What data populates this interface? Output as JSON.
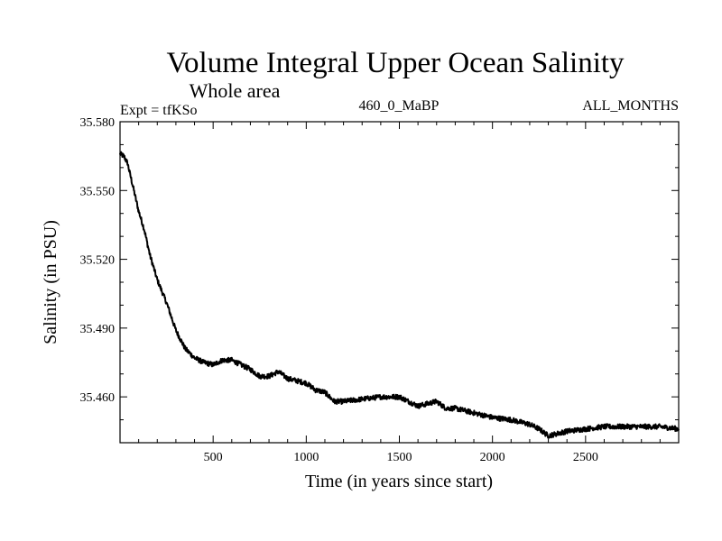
{
  "chart_data": {
    "type": "line",
    "title": "Volume Integral Upper Ocean Salinity",
    "subtitle": "Whole area",
    "expt_label": "Expt = tfKSo",
    "center_label": "460_0_MaBP",
    "right_label": "ALL_MONTHS",
    "xlabel": "Time (in years since start)",
    "ylabel": "Salinity (in PSU)",
    "xlim": [
      0,
      3000
    ],
    "ylim": [
      35.44,
      35.58
    ],
    "x_ticks": [
      500,
      1000,
      1500,
      2000,
      2500
    ],
    "x_tick_labels": [
      "500",
      "1000",
      "1500",
      "2000",
      "2500"
    ],
    "y_ticks": [
      35.58,
      35.55,
      35.52,
      35.49,
      35.46
    ],
    "y_tick_labels": [
      "35.580",
      "35.550",
      "35.520",
      "35.490",
      "35.460"
    ],
    "series": [
      {
        "name": "salinity",
        "color": "#000000",
        "x": [
          0,
          20,
          40,
          60,
          80,
          100,
          130,
          160,
          200,
          250,
          300,
          350,
          400,
          450,
          500,
          550,
          600,
          650,
          700,
          750,
          800,
          850,
          900,
          950,
          1000,
          1050,
          1100,
          1150,
          1200,
          1300,
          1400,
          1500,
          1600,
          1700,
          1750,
          1800,
          1900,
          2000,
          2100,
          2200,
          2250,
          2300,
          2350,
          2400,
          2500,
          2600,
          2700,
          2800,
          2900,
          3000
        ],
        "values": [
          35.566,
          35.565,
          35.562,
          35.555,
          35.548,
          35.541,
          35.533,
          35.522,
          35.511,
          35.501,
          35.489,
          35.481,
          35.477,
          35.475,
          35.474,
          35.476,
          35.476,
          35.474,
          35.472,
          35.469,
          35.469,
          35.471,
          35.468,
          35.467,
          35.466,
          35.463,
          35.462,
          35.458,
          35.458,
          35.459,
          35.46,
          35.46,
          35.456,
          35.458,
          35.455,
          35.455,
          35.453,
          35.451,
          35.45,
          35.448,
          35.446,
          35.443,
          35.444,
          35.445,
          35.446,
          35.447,
          35.447,
          35.447,
          35.447,
          35.446
        ]
      }
    ]
  }
}
